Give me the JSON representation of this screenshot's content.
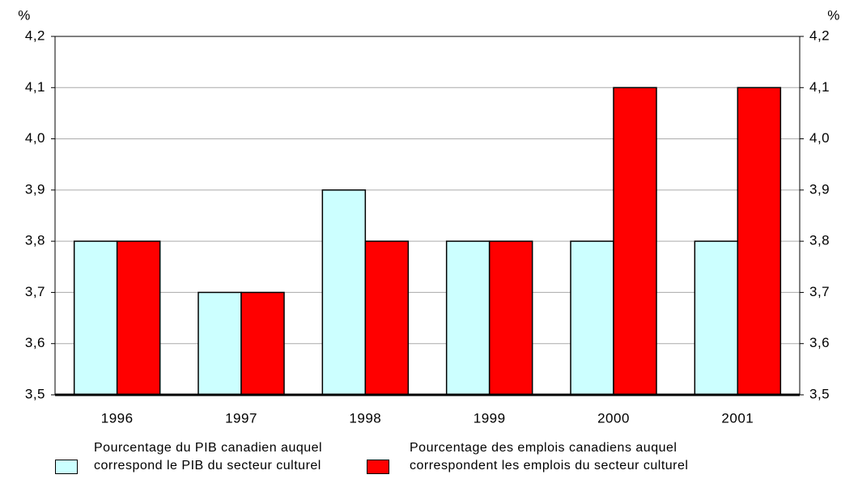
{
  "chart_data": {
    "type": "bar",
    "y_label": "%",
    "y2_label": "%",
    "categories": [
      "1996",
      "1997",
      "1998",
      "1999",
      "2000",
      "2001"
    ],
    "series": [
      {
        "name": "Pourcentage du PIB canadien auquel correspond le PIB du secteur culturel",
        "color": "#ccffff",
        "values": [
          3.8,
          3.7,
          3.9,
          3.8,
          3.8,
          3.8
        ]
      },
      {
        "name": "Pourcentage des emplois canadiens auquel correspondent les emplois du secteur culturel",
        "color": "#ff0000",
        "values": [
          3.8,
          3.7,
          3.8,
          3.8,
          4.1,
          4.1
        ]
      }
    ],
    "ylim": [
      3.5,
      4.2
    ],
    "yticks": [
      {
        "value": 3.5,
        "label": "3,5"
      },
      {
        "value": 3.6,
        "label": "3,6"
      },
      {
        "value": 3.7,
        "label": "3,7"
      },
      {
        "value": 3.8,
        "label": "3,8"
      },
      {
        "value": 3.9,
        "label": "3,9"
      },
      {
        "value": 4.0,
        "label": "4,0"
      },
      {
        "value": 4.1,
        "label": "4,1"
      },
      {
        "value": 4.2,
        "label": "4,2"
      }
    ],
    "y2lim": [
      3.5,
      4.2
    ],
    "y2ticks": [
      {
        "value": 3.5,
        "label": "3,5"
      },
      {
        "value": 3.6,
        "label": "3,6"
      },
      {
        "value": 3.7,
        "label": "3,7"
      },
      {
        "value": 3.8,
        "label": "3,8"
      },
      {
        "value": 3.9,
        "label": "3,9"
      },
      {
        "value": 4.0,
        "label": "4,0"
      },
      {
        "value": 4.1,
        "label": "4,1"
      },
      {
        "value": 4.2,
        "label": "4,2"
      }
    ],
    "grid": true
  }
}
